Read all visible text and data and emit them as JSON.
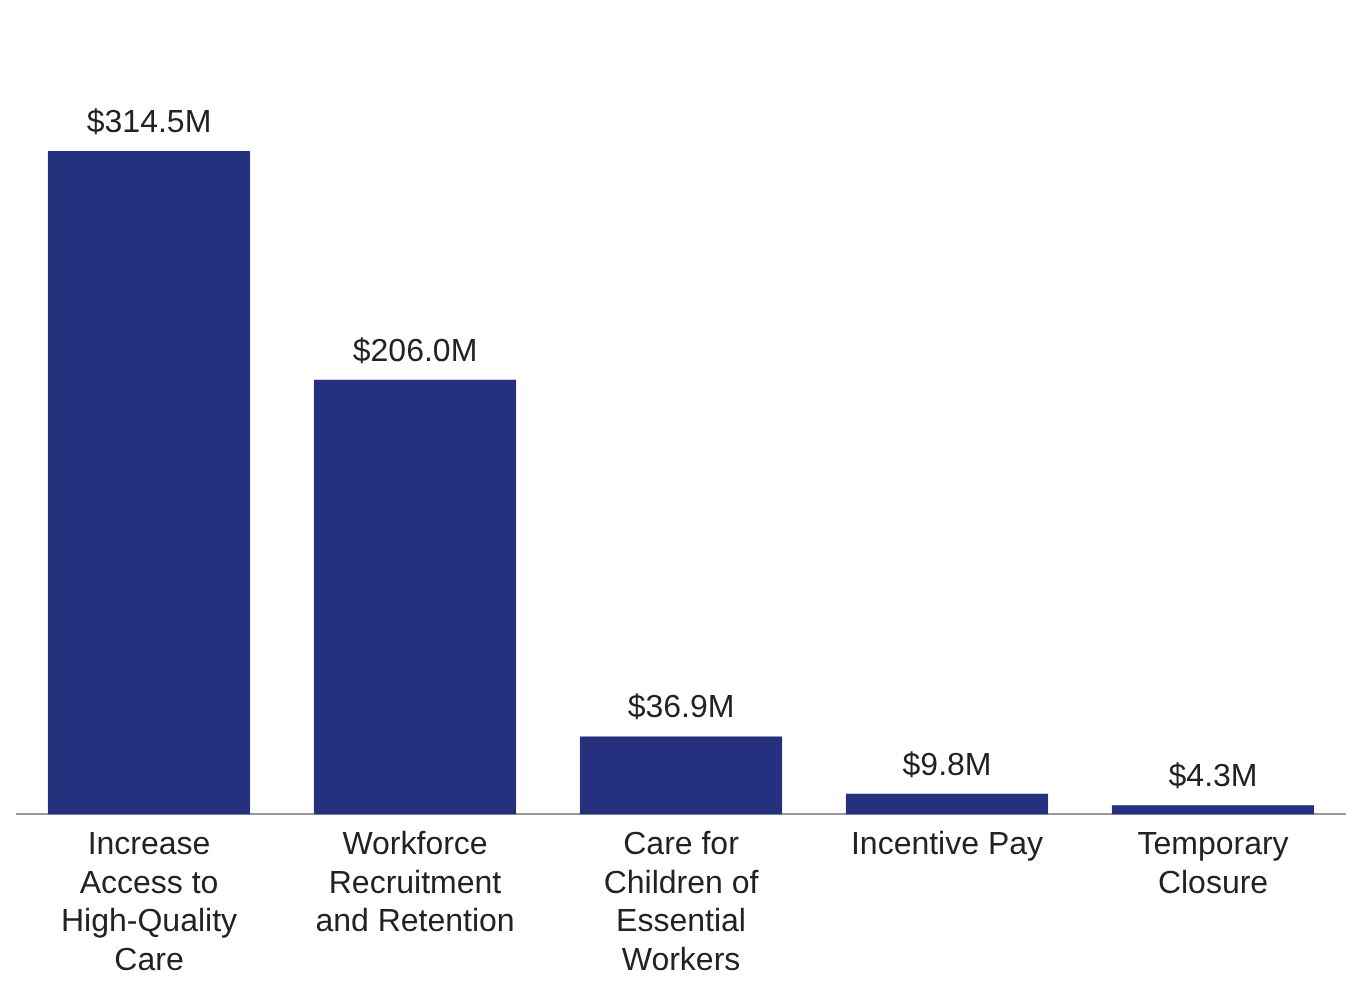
{
  "chart_data": {
    "type": "bar",
    "categories": [
      "Increase Access to High-Quality Care",
      "Workforce Recruitment and Retention",
      "Care for Children of Essential Workers",
      "Incentive Pay",
      "Temporary Closure"
    ],
    "values": [
      314.5,
      206.0,
      36.9,
      9.8,
      4.3
    ],
    "color": "#25317e",
    "value_labels": [
      "$314.5M",
      "$206.0M",
      "$36.9M",
      "$9.8M",
      "$4.3M"
    ],
    "grid": false,
    "legend": false
  }
}
